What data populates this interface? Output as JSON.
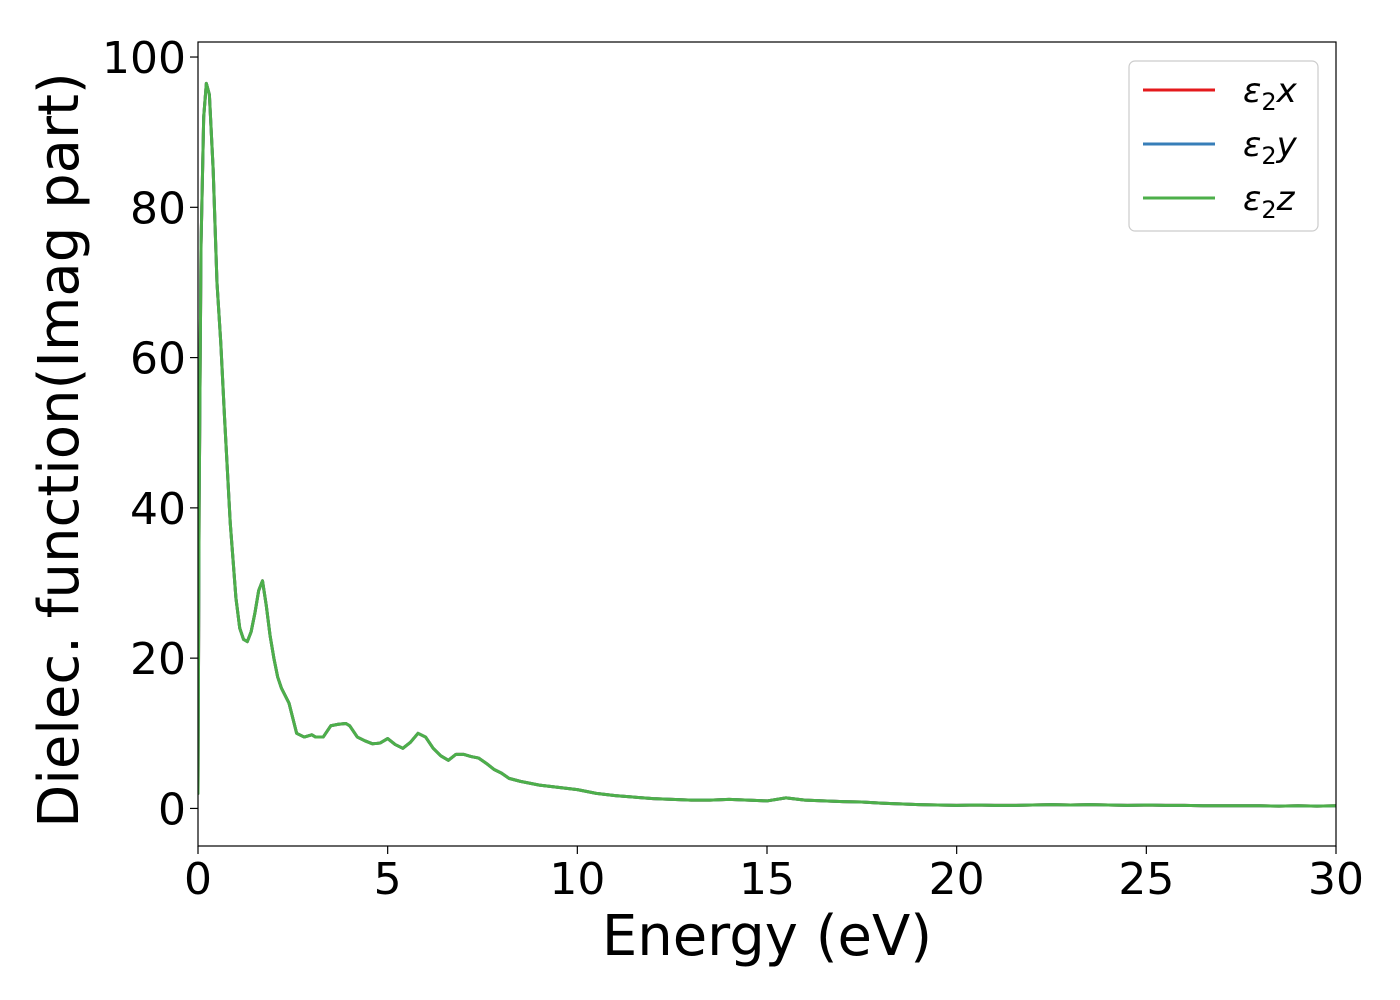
{
  "chart_data": {
    "type": "line",
    "title": "",
    "xlabel": "Energy (eV)",
    "ylabel": "Dielec. function(Imag part)",
    "xlim": [
      0,
      30
    ],
    "ylim": [
      -5,
      102
    ],
    "xticks": [
      0,
      5,
      10,
      15,
      20,
      25,
      30
    ],
    "yticks": [
      0,
      20,
      40,
      60,
      80,
      100
    ],
    "grid": false,
    "legend_position": "top-right",
    "x": [
      0,
      0.03,
      0.08,
      0.15,
      0.22,
      0.3,
      0.4,
      0.5,
      0.6,
      0.7,
      0.85,
      1.0,
      1.1,
      1.2,
      1.3,
      1.4,
      1.5,
      1.6,
      1.7,
      1.8,
      1.9,
      2.0,
      2.1,
      2.2,
      2.4,
      2.6,
      2.8,
      3.0,
      3.1,
      3.3,
      3.5,
      3.7,
      3.9,
      4.0,
      4.2,
      4.4,
      4.6,
      4.8,
      5.0,
      5.2,
      5.4,
      5.6,
      5.8,
      6.0,
      6.2,
      6.4,
      6.6,
      6.8,
      7.0,
      7.2,
      7.4,
      7.6,
      7.8,
      8.0,
      8.2,
      8.5,
      9.0,
      9.5,
      10.0,
      10.5,
      11.0,
      11.5,
      12.0,
      12.5,
      13.0,
      13.5,
      14.0,
      14.5,
      15.0,
      15.5,
      16.0,
      16.5,
      17.0,
      17.5,
      18.0,
      18.5,
      19.0,
      19.5,
      20.0,
      20.5,
      21.0,
      21.5,
      22.0,
      22.5,
      23.0,
      23.5,
      24.0,
      24.5,
      25.0,
      25.5,
      26.0,
      26.5,
      27.0,
      27.5,
      28.0,
      28.5,
      29.0,
      29.5,
      30.0
    ],
    "series": [
      {
        "name": "ε2x",
        "color": "#e41a1c",
        "values": [
          2,
          40,
          75,
          92,
          96.5,
          95,
          85,
          70,
          62,
          52,
          38,
          28,
          24,
          22.5,
          22.2,
          23.5,
          26,
          29,
          30.3,
          27,
          23,
          20,
          17.5,
          16,
          14,
          10,
          9.5,
          9.8,
          9.5,
          9.5,
          11,
          11.2,
          11.3,
          11,
          9.5,
          9,
          8.6,
          8.7,
          9.3,
          8.5,
          8.0,
          8.8,
          10.0,
          9.5,
          8.0,
          7.0,
          6.4,
          7.2,
          7.2,
          6.9,
          6.7,
          6.0,
          5.2,
          4.7,
          4.0,
          3.6,
          3.1,
          2.8,
          2.5,
          2.0,
          1.7,
          1.5,
          1.3,
          1.2,
          1.1,
          1.1,
          1.2,
          1.1,
          1.0,
          1.4,
          1.1,
          1.0,
          0.9,
          0.85,
          0.7,
          0.6,
          0.5,
          0.45,
          0.4,
          0.45,
          0.4,
          0.4,
          0.45,
          0.5,
          0.45,
          0.5,
          0.45,
          0.4,
          0.45,
          0.4,
          0.4,
          0.35,
          0.35,
          0.35,
          0.35,
          0.3,
          0.35,
          0.3,
          0.35
        ]
      },
      {
        "name": "ε2y",
        "color": "#377eb8",
        "values": [
          2,
          40,
          75,
          92,
          96.5,
          95,
          85,
          70,
          62,
          52,
          38,
          28,
          24,
          22.5,
          22.2,
          23.5,
          26,
          29,
          30.3,
          27,
          23,
          20,
          17.5,
          16,
          14,
          10,
          9.5,
          9.8,
          9.5,
          9.5,
          11,
          11.2,
          11.3,
          11,
          9.5,
          9,
          8.6,
          8.7,
          9.3,
          8.5,
          8.0,
          8.8,
          10.0,
          9.5,
          8.0,
          7.0,
          6.4,
          7.2,
          7.2,
          6.9,
          6.7,
          6.0,
          5.2,
          4.7,
          4.0,
          3.6,
          3.1,
          2.8,
          2.5,
          2.0,
          1.7,
          1.5,
          1.3,
          1.2,
          1.1,
          1.1,
          1.2,
          1.1,
          1.0,
          1.4,
          1.1,
          1.0,
          0.9,
          0.85,
          0.7,
          0.6,
          0.5,
          0.45,
          0.4,
          0.45,
          0.4,
          0.4,
          0.45,
          0.5,
          0.45,
          0.5,
          0.45,
          0.4,
          0.45,
          0.4,
          0.4,
          0.35,
          0.35,
          0.35,
          0.35,
          0.3,
          0.35,
          0.3,
          0.35
        ]
      },
      {
        "name": "ε2z",
        "color": "#4daf4a",
        "values": [
          2,
          40,
          75,
          92,
          96.5,
          95,
          85,
          70,
          62,
          52,
          38,
          28,
          24,
          22.5,
          22.2,
          23.5,
          26,
          29,
          30.3,
          27,
          23,
          20,
          17.5,
          16,
          14,
          10,
          9.5,
          9.8,
          9.5,
          9.5,
          11,
          11.2,
          11.3,
          11,
          9.5,
          9,
          8.6,
          8.7,
          9.3,
          8.5,
          8.0,
          8.8,
          10.0,
          9.5,
          8.0,
          7.0,
          6.4,
          7.2,
          7.2,
          6.9,
          6.7,
          6.0,
          5.2,
          4.7,
          4.0,
          3.6,
          3.1,
          2.8,
          2.5,
          2.0,
          1.7,
          1.5,
          1.3,
          1.2,
          1.1,
          1.1,
          1.2,
          1.1,
          1.0,
          1.4,
          1.1,
          1.0,
          0.9,
          0.85,
          0.7,
          0.6,
          0.5,
          0.45,
          0.4,
          0.45,
          0.4,
          0.4,
          0.45,
          0.5,
          0.45,
          0.5,
          0.45,
          0.4,
          0.45,
          0.4,
          0.4,
          0.35,
          0.35,
          0.35,
          0.35,
          0.3,
          0.35,
          0.3,
          0.35
        ]
      }
    ],
    "legend": [
      {
        "symbol": "ε",
        "sub": "2",
        "axis": "x"
      },
      {
        "symbol": "ε",
        "sub": "2",
        "axis": "y"
      },
      {
        "symbol": "ε",
        "sub": "2",
        "axis": "z"
      }
    ]
  }
}
